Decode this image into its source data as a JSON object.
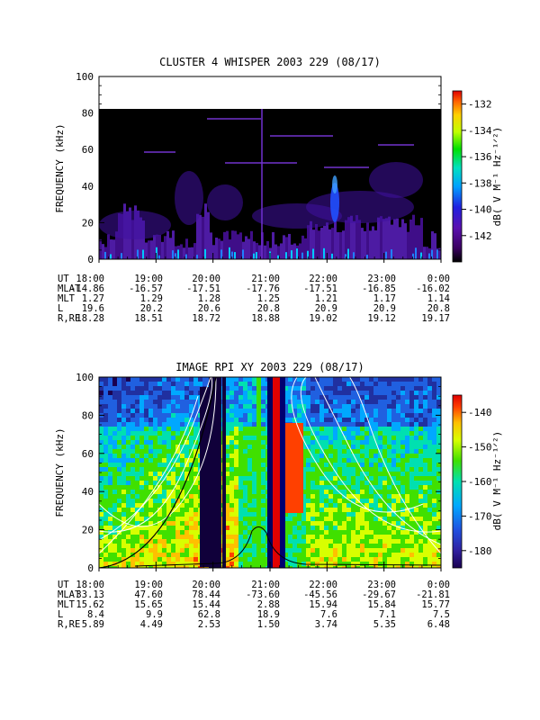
{
  "chart_data": [
    {
      "type": "heatmap",
      "title": "CLUSTER 4 WHISPER 2003 229 (08/17)",
      "ylabel": "FREQUENCY (kHz)",
      "ylim": [
        0,
        100
      ],
      "yticks": [
        "0",
        "20",
        "40",
        "60",
        "80",
        "100"
      ],
      "data_max_frequency_khz": 80,
      "colorbar": {
        "label": "dB( V M⁻¹ Hz⁻¹ᐟ²)",
        "ticks": [
          "-132",
          "-134",
          "-136",
          "-138",
          "-140",
          "-142"
        ],
        "range": [
          -144,
          -131
        ]
      },
      "x_time_labels": [
        "18:00",
        "19:00",
        "20:00",
        "21:00",
        "22:00",
        "23:00",
        "0:00"
      ],
      "ephemeris": [
        {
          "label": "UT",
          "values": [
            "18:00",
            "19:00",
            "20:00",
            "21:00",
            "22:00",
            "23:00",
            "0:00"
          ]
        },
        {
          "label": "MLAT",
          "values": [
            "-14.86",
            "-16.57",
            "-17.51",
            "-17.76",
            "-17.51",
            "-16.85",
            "-16.02"
          ]
        },
        {
          "label": "MLT",
          "values": [
            "1.27",
            "1.29",
            "1.28",
            "1.25",
            "1.21",
            "1.17",
            "1.14"
          ]
        },
        {
          "label": "L",
          "values": [
            "19.6",
            "20.2",
            "20.6",
            "20.8",
            "20.9",
            "20.9",
            "20.8"
          ]
        },
        {
          "label": "R,RE",
          "values": [
            "18.28",
            "18.51",
            "18.72",
            "18.88",
            "19.02",
            "19.12",
            "19.17"
          ]
        }
      ]
    },
    {
      "type": "heatmap",
      "title": "IMAGE RPI XY 2003 229 (08/17)",
      "ylabel": "FREQUENCY (kHz)",
      "ylim": [
        0,
        100
      ],
      "yticks": [
        "0",
        "20",
        "40",
        "60",
        "80",
        "100"
      ],
      "colorbar": {
        "label": "dB( V M⁻¹ Hz⁻¹ᐟ²)",
        "ticks": [
          "-140",
          "-150",
          "-160",
          "-170",
          "-180"
        ],
        "range": [
          -185,
          -135
        ]
      },
      "x_time_labels": [
        "18:00",
        "19:00",
        "20:00",
        "21:00",
        "22:00",
        "23:00",
        "0:00"
      ],
      "ephemeris": [
        {
          "label": "UT",
          "values": [
            "18:00",
            "19:00",
            "20:00",
            "21:00",
            "22:00",
            "23:00",
            "0:00"
          ]
        },
        {
          "label": "MLAT",
          "values": [
            "33.13",
            "47.60",
            "78.44",
            "-73.60",
            "-45.56",
            "-29.67",
            "-21.81"
          ]
        },
        {
          "label": "MLT",
          "values": [
            "15.62",
            "15.65",
            "15.44",
            "2.88",
            "15.94",
            "15.84",
            "15.77"
          ]
        },
        {
          "label": "L",
          "values": [
            "8.4",
            "9.9",
            "62.8",
            "18.9",
            "7.6",
            "7.1",
            "7.5"
          ]
        },
        {
          "label": "R,RE",
          "values": [
            "5.89",
            "4.49",
            "2.53",
            "1.50",
            "3.74",
            "5.35",
            "6.48"
          ]
        }
      ]
    }
  ]
}
